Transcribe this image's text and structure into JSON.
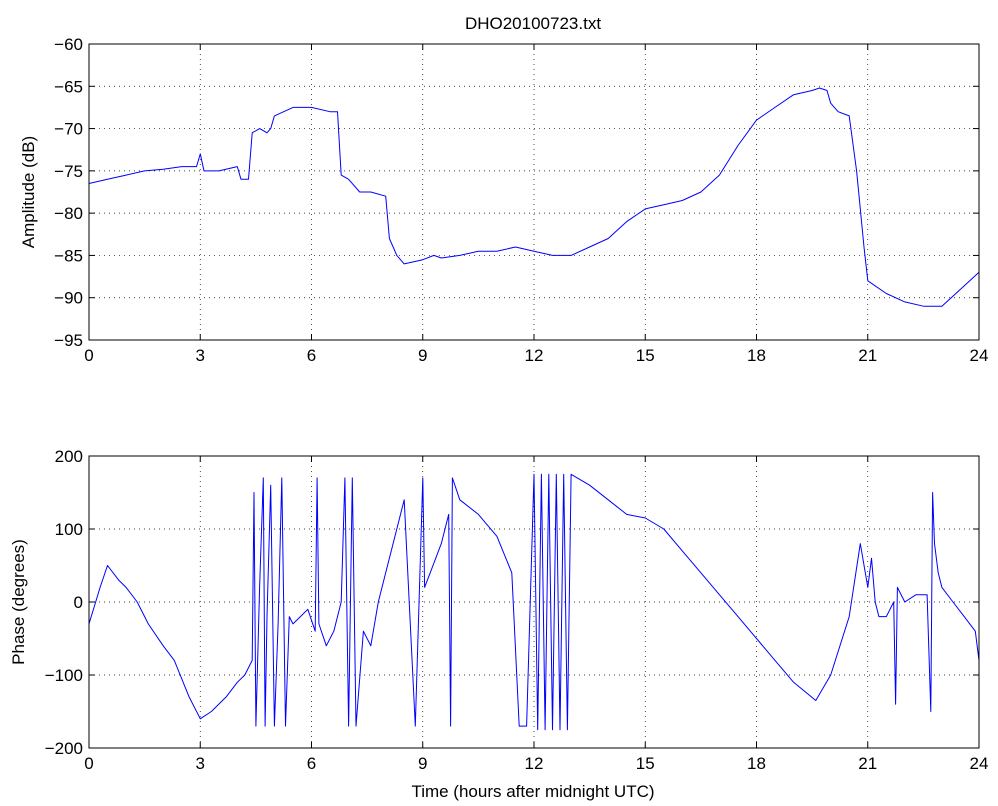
{
  "chart_data": [
    {
      "type": "line",
      "title": "DHO20100723.txt",
      "xlabel": "",
      "ylabel": "Amplitude (dB)",
      "xlim": [
        0,
        24
      ],
      "ylim": [
        -95,
        -60
      ],
      "xticks": [
        0,
        3,
        6,
        9,
        12,
        15,
        18,
        21,
        24
      ],
      "yticks": [
        -95,
        -90,
        -85,
        -80,
        -75,
        -70,
        -65,
        -60
      ],
      "grid": true,
      "series_color": "#0000ff",
      "series": [
        {
          "x": [
            0,
            0.5,
            1,
            1.5,
            2,
            2.5,
            2.9,
            3,
            3.1,
            3.5,
            4,
            4.1,
            4.3,
            4.4,
            4.6,
            4.8,
            4.9,
            5,
            5.5,
            6,
            6.5,
            6.7,
            6.8,
            7,
            7.3,
            7.6,
            8,
            8.1,
            8.3,
            8.5,
            9,
            9.3,
            9.5,
            10,
            10.5,
            11,
            11.5,
            12,
            12.5,
            13,
            13.5,
            14,
            14.5,
            15,
            15.5,
            16,
            16.5,
            17,
            17.5,
            18,
            18.5,
            19,
            19.5,
            19.7,
            19.9,
            20,
            20.2,
            20.5,
            20.7,
            20.9,
            21,
            21.5,
            22,
            22.5,
            23,
            23.5,
            24
          ],
          "y": [
            -76.5,
            -76,
            -75.5,
            -75,
            -74.8,
            -74.5,
            -74.5,
            -73,
            -75,
            -75,
            -74.5,
            -76,
            -76,
            -70.5,
            -70,
            -70.5,
            -70,
            -68.5,
            -67.5,
            -67.5,
            -68,
            -68,
            -75.5,
            -76,
            -77.5,
            -77.5,
            -78,
            -83,
            -85,
            -86,
            -85.5,
            -85,
            -85.3,
            -85,
            -84.5,
            -84.5,
            -84,
            -84.5,
            -85,
            -85,
            -84,
            -83,
            -81,
            -79.5,
            -79,
            -78.5,
            -77.5,
            -75.5,
            -72,
            -69,
            -67.5,
            -66,
            -65.5,
            -65.2,
            -65.5,
            -67,
            -68,
            -68.5,
            -75,
            -84,
            -88,
            -89.5,
            -90.5,
            -91,
            -91,
            -89,
            -87
          ]
        }
      ]
    },
    {
      "type": "line",
      "title": "",
      "xlabel": "Time (hours after midnight UTC)",
      "ylabel": "Phase (degrees)",
      "xlim": [
        0,
        24
      ],
      "ylim": [
        -200,
        200
      ],
      "xticks": [
        0,
        3,
        6,
        9,
        12,
        15,
        18,
        21,
        24
      ],
      "yticks": [
        -200,
        -100,
        0,
        100,
        200
      ],
      "grid": true,
      "series_color": "#0000ff",
      "series": [
        {
          "x": [
            0,
            0.3,
            0.5,
            0.8,
            1,
            1.3,
            1.6,
            2,
            2.3,
            2.7,
            3,
            3.3,
            3.7,
            4,
            4.2,
            4.4,
            4.45,
            4.5,
            4.6,
            4.7,
            4.75,
            4.8,
            4.9,
            5,
            5.1,
            5.2,
            5.3,
            5.4,
            5.5,
            5.7,
            5.9,
            6.1,
            6.15,
            6.2,
            6.4,
            6.6,
            6.8,
            6.9,
            7,
            7.1,
            7.2,
            7.4,
            7.6,
            7.8,
            8,
            8.2,
            8.5,
            8.8,
            9,
            9.05,
            9.2,
            9.5,
            9.7,
            9.75,
            9.8,
            10,
            10.5,
            11,
            11.4,
            11.6,
            11.8,
            12,
            12.1,
            12.2,
            12.3,
            12.4,
            12.5,
            12.6,
            12.7,
            12.8,
            12.9,
            13,
            13.5,
            14,
            14.5,
            15,
            15.5,
            16,
            16.5,
            17,
            17.5,
            18,
            18.5,
            19,
            19.6,
            20,
            20.5,
            20.8,
            21,
            21.1,
            21.2,
            21.3,
            21.5,
            21.7,
            21.75,
            21.8,
            22,
            22.3,
            22.6,
            22.7,
            22.75,
            22.8,
            22.9,
            23,
            23.3,
            23.6,
            23.9,
            24
          ],
          "y": [
            -30,
            20,
            50,
            30,
            20,
            0,
            -30,
            -60,
            -80,
            -130,
            -160,
            -150,
            -130,
            -110,
            -100,
            -80,
            150,
            -170,
            20,
            170,
            -170,
            -20,
            160,
            -170,
            -30,
            170,
            -170,
            -20,
            -30,
            -20,
            -10,
            -40,
            170,
            -30,
            -60,
            -40,
            0,
            170,
            -170,
            170,
            -170,
            -40,
            -60,
            0,
            40,
            80,
            140,
            -170,
            170,
            20,
            40,
            80,
            120,
            -170,
            170,
            140,
            120,
            90,
            40,
            -170,
            -170,
            175,
            -175,
            175,
            -175,
            175,
            -175,
            175,
            -175,
            175,
            -175,
            175,
            160,
            140,
            120,
            115,
            100,
            70,
            40,
            10,
            -20,
            -50,
            -80,
            -110,
            -135,
            -100,
            -20,
            80,
            20,
            60,
            0,
            -20,
            -20,
            0,
            -140,
            20,
            0,
            10,
            10,
            -150,
            150,
            80,
            40,
            20,
            0,
            -20,
            -40,
            -80
          ]
        }
      ]
    }
  ]
}
